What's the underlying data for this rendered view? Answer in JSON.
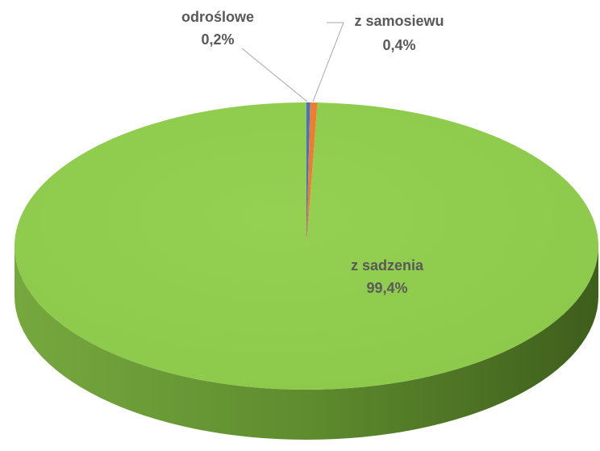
{
  "chart_data": {
    "type": "pie",
    "categories": [
      "odroślowe",
      "z samosiewu",
      "z sadzenia"
    ],
    "values": [
      0.2,
      0.4,
      99.4
    ],
    "value_labels": [
      "0,2%",
      "0,4%",
      "99,4%"
    ],
    "colors": [
      "#4472c4",
      "#ed7d31",
      "#92d050"
    ]
  }
}
